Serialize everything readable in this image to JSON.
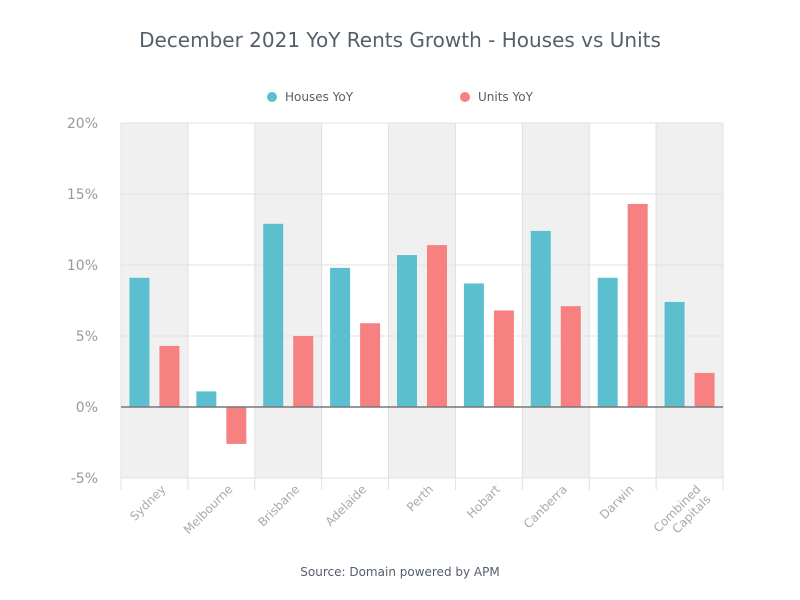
{
  "chart_data": {
    "type": "bar",
    "title": "December 2021 YoY Rents Growth - Houses vs Units",
    "categories": [
      [
        "Sydney"
      ],
      [
        "Melbourne"
      ],
      [
        "Brisbane"
      ],
      [
        "Adelaide"
      ],
      [
        "Perth"
      ],
      [
        "Hobart"
      ],
      [
        "Canberra"
      ],
      [
        "Darwin"
      ],
      [
        "Combined",
        "Capitals"
      ]
    ],
    "series": [
      {
        "name": "Houses YoY",
        "color": "#5bbfd0",
        "values": [
          9.1,
          1.1,
          12.9,
          9.8,
          10.7,
          8.7,
          12.4,
          9.1,
          7.4
        ]
      },
      {
        "name": "Units YoY",
        "color": "#f78080",
        "values": [
          4.3,
          -2.6,
          5.0,
          5.9,
          11.4,
          6.8,
          7.1,
          14.3,
          2.4
        ]
      }
    ],
    "ylim": [
      -5,
      20
    ],
    "yticks": [
      20,
      15,
      10,
      5,
      0,
      -5
    ],
    "ytick_labels": [
      "20%",
      "15%",
      "10%",
      "5%",
      "0%",
      "-5%"
    ],
    "xlabel": "",
    "ylabel": "",
    "grid": true,
    "legend_position": "top-center",
    "band_color": "#f0f0f0",
    "source": "Source: Domain powered by APM"
  }
}
